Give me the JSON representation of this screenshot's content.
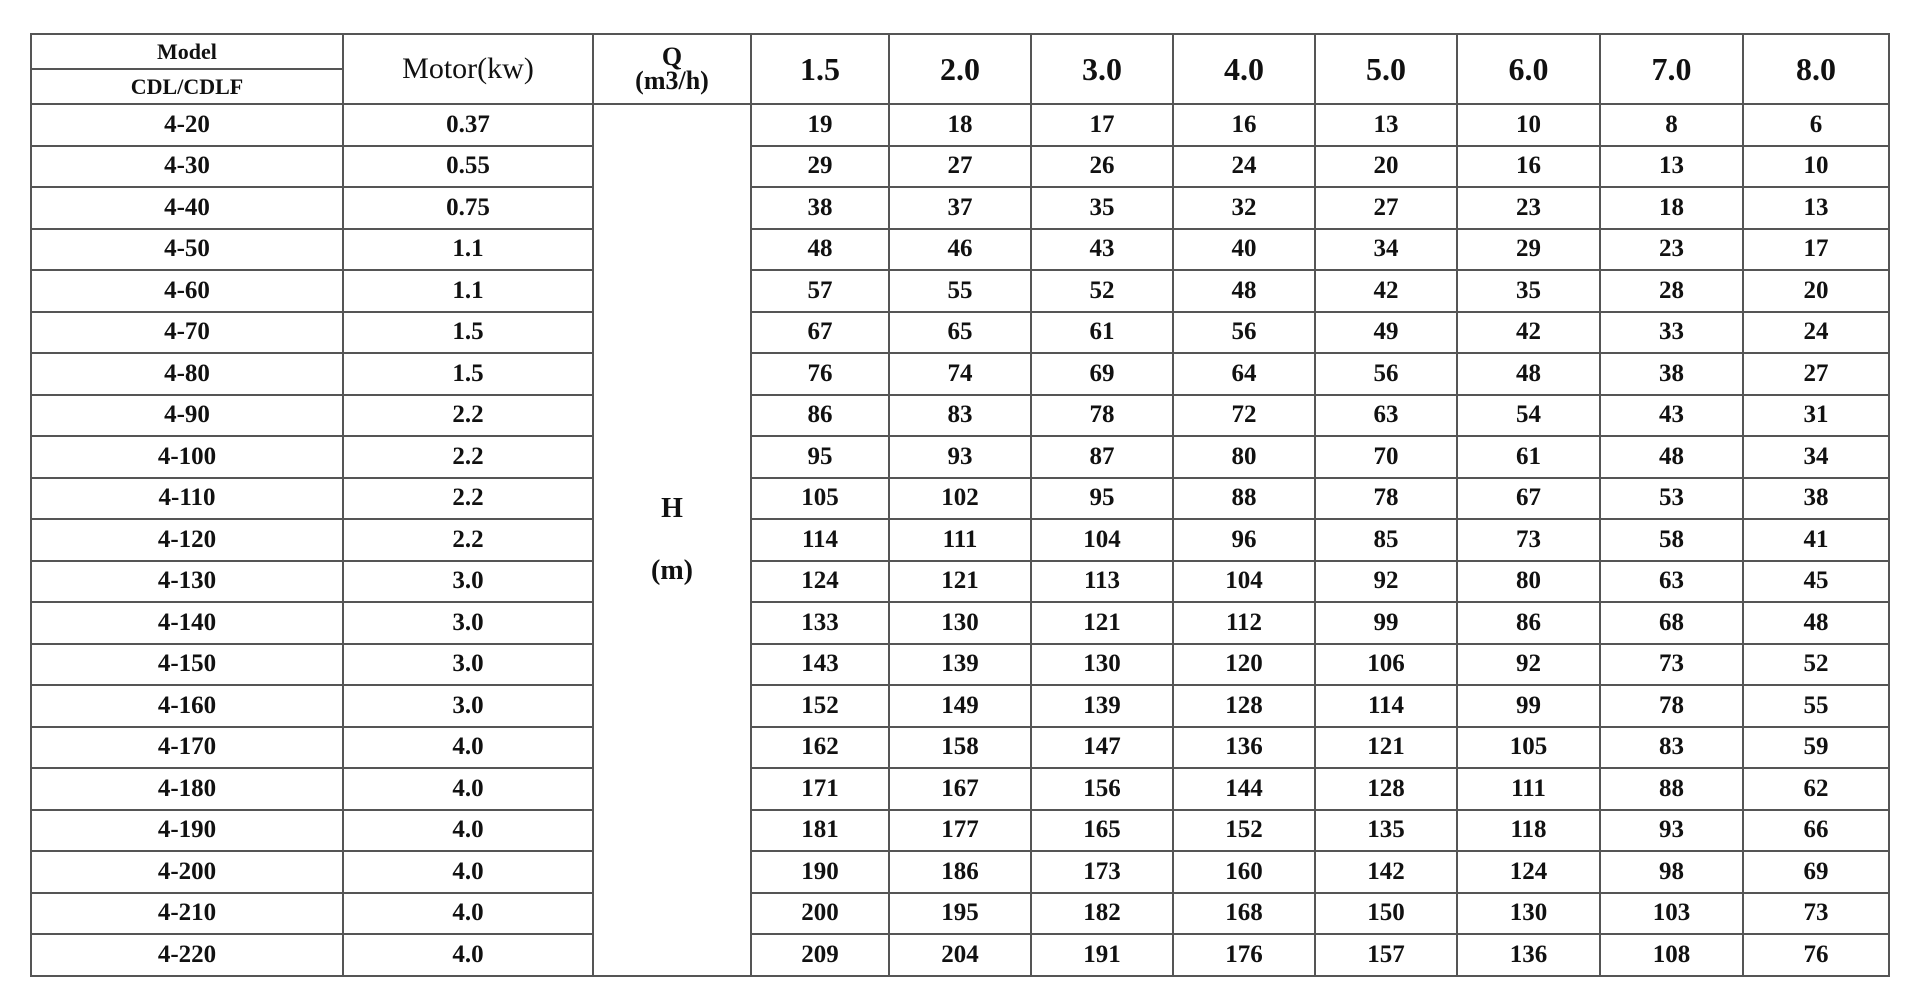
{
  "header": {
    "model_label": "Model",
    "series_label": "CDL/CDLF",
    "motor_label": "Motor(kw)",
    "q_label": "Q",
    "q_unit": "(m3/h)",
    "h_label": "H",
    "h_unit": "(m)",
    "flows": [
      "1.5",
      "2.0",
      "3.0",
      "4.0",
      "5.0",
      "6.0",
      "7.0",
      "8.0"
    ]
  },
  "rows": [
    {
      "model": "4-20",
      "motor": "0.37",
      "heads": [
        19,
        18,
        17,
        16,
        13,
        10,
        8,
        6
      ]
    },
    {
      "model": "4-30",
      "motor": "0.55",
      "heads": [
        29,
        27,
        26,
        24,
        20,
        16,
        13,
        10
      ]
    },
    {
      "model": "4-40",
      "motor": "0.75",
      "heads": [
        38,
        37,
        35,
        32,
        27,
        23,
        18,
        13
      ]
    },
    {
      "model": "4-50",
      "motor": "1.1",
      "heads": [
        48,
        46,
        43,
        40,
        34,
        29,
        23,
        17
      ]
    },
    {
      "model": "4-60",
      "motor": "1.1",
      "heads": [
        57,
        55,
        52,
        48,
        42,
        35,
        28,
        20
      ]
    },
    {
      "model": "4-70",
      "motor": "1.5",
      "heads": [
        67,
        65,
        61,
        56,
        49,
        42,
        33,
        24
      ]
    },
    {
      "model": "4-80",
      "motor": "1.5",
      "heads": [
        76,
        74,
        69,
        64,
        56,
        48,
        38,
        27
      ]
    },
    {
      "model": "4-90",
      "motor": "2.2",
      "heads": [
        86,
        83,
        78,
        72,
        63,
        54,
        43,
        31
      ]
    },
    {
      "model": "4-100",
      "motor": "2.2",
      "heads": [
        95,
        93,
        87,
        80,
        70,
        61,
        48,
        34
      ]
    },
    {
      "model": "4-110",
      "motor": "2.2",
      "heads": [
        105,
        102,
        95,
        88,
        78,
        67,
        53,
        38
      ]
    },
    {
      "model": "4-120",
      "motor": "2.2",
      "heads": [
        114,
        111,
        104,
        96,
        85,
        73,
        58,
        41
      ]
    },
    {
      "model": "4-130",
      "motor": "3.0",
      "heads": [
        124,
        121,
        113,
        104,
        92,
        80,
        63,
        45
      ]
    },
    {
      "model": "4-140",
      "motor": "3.0",
      "heads": [
        133,
        130,
        121,
        112,
        99,
        86,
        68,
        48
      ]
    },
    {
      "model": "4-150",
      "motor": "3.0",
      "heads": [
        143,
        139,
        130,
        120,
        106,
        92,
        73,
        52
      ]
    },
    {
      "model": "4-160",
      "motor": "3.0",
      "heads": [
        152,
        149,
        139,
        128,
        114,
        99,
        78,
        55
      ]
    },
    {
      "model": "4-170",
      "motor": "4.0",
      "heads": [
        162,
        158,
        147,
        136,
        121,
        105,
        83,
        59
      ]
    },
    {
      "model": "4-180",
      "motor": "4.0",
      "heads": [
        171,
        167,
        156,
        144,
        128,
        111,
        88,
        62
      ]
    },
    {
      "model": "4-190",
      "motor": "4.0",
      "heads": [
        181,
        177,
        165,
        152,
        135,
        118,
        93,
        66
      ]
    },
    {
      "model": "4-200",
      "motor": "4.0",
      "heads": [
        190,
        186,
        173,
        160,
        142,
        124,
        98,
        69
      ]
    },
    {
      "model": "4-210",
      "motor": "4.0",
      "heads": [
        200,
        195,
        182,
        168,
        150,
        130,
        103,
        73
      ]
    },
    {
      "model": "4-220",
      "motor": "4.0",
      "heads": [
        209,
        204,
        191,
        176,
        157,
        136,
        108,
        76
      ]
    }
  ]
}
